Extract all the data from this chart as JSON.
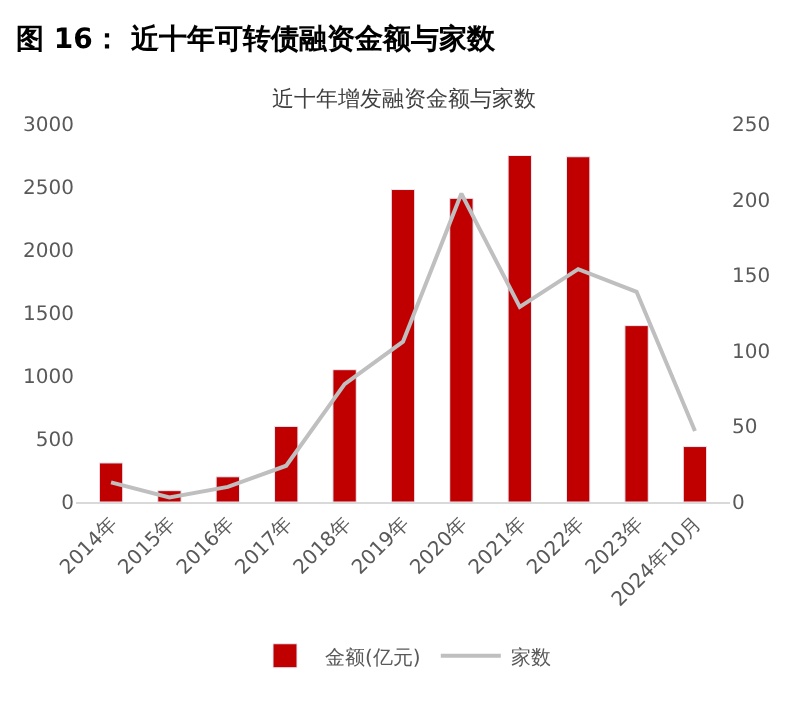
{
  "chart_data": {
    "type": "bar",
    "title": "图 16： 近十年可转债融资金额与家数",
    "subtitle": "近十年增发融资金额与家数",
    "categories": [
      "2014年",
      "2015年",
      "2016年",
      "2017年",
      "2018年",
      "2019年",
      "2020年",
      "2021年",
      "2022年",
      "2023年",
      "2024年10月"
    ],
    "series": [
      {
        "name": "金额(亿元)",
        "color": "#c00000",
        "values": [
          310,
          90,
          200,
          600,
          1050,
          2480,
          2410,
          2750,
          2740,
          1400,
          440
        ]
      },
      {
        "name": "家数",
        "type": "line",
        "axis": "y2",
        "color": "#bfbfbf",
        "values": [
          13,
          3,
          10,
          24,
          78,
          106,
          204,
          129,
          154,
          139,
          47
        ]
      }
    ],
    "ylim": [
      0,
      3000
    ],
    "yticks": [
      0,
      500,
      1000,
      1500,
      2000,
      2500,
      3000
    ],
    "y2lim": [
      0,
      250
    ],
    "y2ticks": [
      0,
      50,
      100,
      150,
      200,
      250
    ],
    "legend": "bottom",
    "marker": "none"
  }
}
